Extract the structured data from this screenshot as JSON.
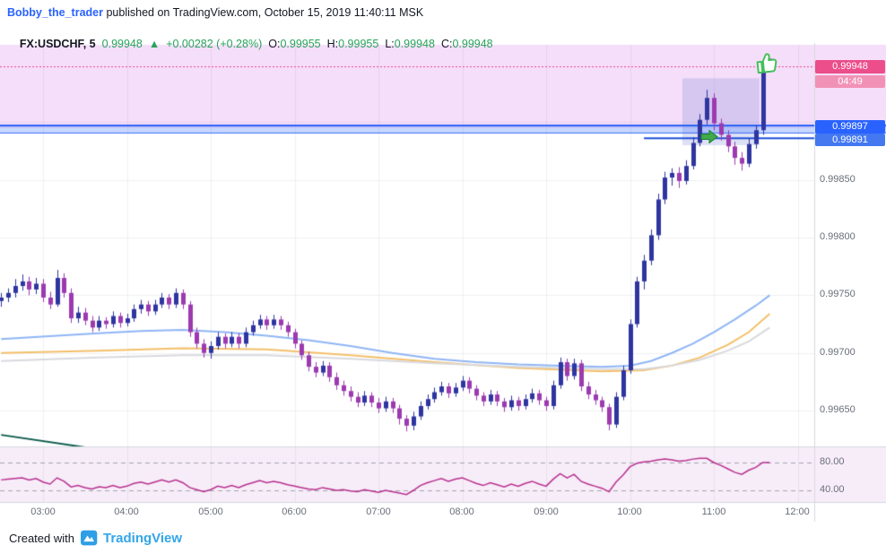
{
  "header": {
    "username": "Bobby_the_trader",
    "publish_text": " published on TradingView.com, October 15, 2019 11:40:11 MSK"
  },
  "legend": {
    "symbol": "FX:USDCHF, 5",
    "last": "0.99948",
    "arrow": "▲",
    "change": "+0.00282 (+0.28%)",
    "o_label": "O:",
    "o_value": "0.99955",
    "h_label": "H:",
    "h_value": "0.99955",
    "l_label": "L:",
    "l_value": "0.99948",
    "c_label": "C:",
    "c_value": "0.99948"
  },
  "price_axis": {
    "labels": [
      "0.99850",
      "0.99800",
      "0.99750",
      "0.99700",
      "0.99650"
    ],
    "last_price": "0.99948",
    "countdown": "04:49",
    "band_upper": "0.99897",
    "band_lower": "0.99891",
    "osc_labels": [
      "80.00",
      "40.00"
    ]
  },
  "time_axis": {
    "labels": [
      "03:00",
      "04:00",
      "05:00",
      "06:00",
      "07:00",
      "08:00",
      "09:00",
      "10:00",
      "11:00",
      "12:00"
    ]
  },
  "footer": {
    "created_with": "Created with",
    "brand": "TradingView"
  },
  "colors": {
    "link_blue": "#2962ff",
    "bullish_text": "#27a35a",
    "header_text": "#131722",
    "axis_text": "#696e79",
    "brand_blue": "#32a6e8",
    "last_price_chip": "#ec4d8b",
    "countdown_chip": "#f291b6",
    "band_chip": "#2962ff"
  },
  "chart_data": {
    "type": "candlestick",
    "title": "FX:USDCHF 5-minute chart",
    "interval_minutes": 5,
    "price_range_top": 0.99967,
    "price_range_bottom": 0.99619,
    "candles": [
      [
        "02:30",
        0.99745,
        0.99752,
        0.9974,
        0.99748
      ],
      [
        "02:35",
        0.99748,
        0.99756,
        0.99744,
        0.99752
      ],
      [
        "02:40",
        0.99752,
        0.99764,
        0.99748,
        0.99758
      ],
      [
        "02:45",
        0.99758,
        0.99768,
        0.99754,
        0.99762
      ],
      [
        "02:50",
        0.99762,
        0.99766,
        0.9975,
        0.99755
      ],
      [
        "02:55",
        0.99755,
        0.99765,
        0.99751,
        0.9976
      ],
      [
        "03:00",
        0.9976,
        0.99764,
        0.99744,
        0.99748
      ],
      [
        "03:05",
        0.99748,
        0.99753,
        0.99738,
        0.99742
      ],
      [
        "03:10",
        0.99742,
        0.99772,
        0.9974,
        0.99765
      ],
      [
        "03:15",
        0.99765,
        0.99769,
        0.99748,
        0.99752
      ],
      [
        "03:20",
        0.99752,
        0.99756,
        0.99726,
        0.9973
      ],
      [
        "03:25",
        0.9973,
        0.9974,
        0.99726,
        0.99735
      ],
      [
        "03:30",
        0.99735,
        0.99739,
        0.99724,
        0.99728
      ],
      [
        "03:35",
        0.99728,
        0.99732,
        0.99718,
        0.99722
      ],
      [
        "03:40",
        0.99722,
        0.99732,
        0.99719,
        0.99728
      ],
      [
        "03:45",
        0.99728,
        0.99731,
        0.99721,
        0.99725
      ],
      [
        "03:50",
        0.99725,
        0.99736,
        0.99722,
        0.99732
      ],
      [
        "03:55",
        0.99732,
        0.99735,
        0.99722,
        0.99726
      ],
      [
        "04:00",
        0.99726,
        0.99734,
        0.99723,
        0.9973
      ],
      [
        "04:05",
        0.9973,
        0.99742,
        0.99727,
        0.99738
      ],
      [
        "04:10",
        0.99738,
        0.99746,
        0.99734,
        0.99742
      ],
      [
        "04:15",
        0.99742,
        0.99745,
        0.99732,
        0.99736
      ],
      [
        "04:20",
        0.99736,
        0.99746,
        0.99733,
        0.99742
      ],
      [
        "04:25",
        0.99742,
        0.99752,
        0.99739,
        0.99748
      ],
      [
        "04:30",
        0.99748,
        0.99751,
        0.99738,
        0.99742
      ],
      [
        "04:35",
        0.99742,
        0.99756,
        0.99739,
        0.99752
      ],
      [
        "04:40",
        0.99752,
        0.99755,
        0.99738,
        0.99742
      ],
      [
        "04:45",
        0.99742,
        0.99745,
        0.99714,
        0.99718
      ],
      [
        "04:50",
        0.99718,
        0.99722,
        0.99704,
        0.99708
      ],
      [
        "04:55",
        0.99708,
        0.99712,
        0.99696,
        0.997
      ],
      [
        "05:00",
        0.997,
        0.9971,
        0.99695,
        0.99706
      ],
      [
        "05:05",
        0.99706,
        0.99718,
        0.99703,
        0.99714
      ],
      [
        "05:10",
        0.99714,
        0.99717,
        0.99704,
        0.99708
      ],
      [
        "05:15",
        0.99708,
        0.99718,
        0.99705,
        0.99714
      ],
      [
        "05:20",
        0.99714,
        0.99717,
        0.99704,
        0.99708
      ],
      [
        "05:25",
        0.99708,
        0.99722,
        0.99705,
        0.99718
      ],
      [
        "05:30",
        0.99718,
        0.99728,
        0.99715,
        0.99724
      ],
      [
        "05:35",
        0.99724,
        0.99733,
        0.99721,
        0.99729
      ],
      [
        "05:40",
        0.99729,
        0.99732,
        0.9972,
        0.99724
      ],
      [
        "05:45",
        0.99724,
        0.99733,
        0.99721,
        0.99729
      ],
      [
        "05:50",
        0.99729,
        0.99732,
        0.9972,
        0.99724
      ],
      [
        "05:55",
        0.99724,
        0.99727,
        0.99714,
        0.99718
      ],
      [
        "06:00",
        0.99718,
        0.99721,
        0.99704,
        0.99708
      ],
      [
        "06:05",
        0.99708,
        0.99711,
        0.99694,
        0.99698
      ],
      [
        "06:10",
        0.99698,
        0.99701,
        0.99684,
        0.99688
      ],
      [
        "06:15",
        0.99688,
        0.99692,
        0.99679,
        0.99683
      ],
      [
        "06:20",
        0.99683,
        0.99693,
        0.9968,
        0.99689
      ],
      [
        "06:25",
        0.99689,
        0.99692,
        0.99675,
        0.99679
      ],
      [
        "06:30",
        0.99679,
        0.99683,
        0.99668,
        0.99672
      ],
      [
        "06:35",
        0.99672,
        0.99676,
        0.99663,
        0.99667
      ],
      [
        "06:40",
        0.99667,
        0.99671,
        0.99658,
        0.99662
      ],
      [
        "06:45",
        0.99662,
        0.99666,
        0.99653,
        0.99657
      ],
      [
        "06:50",
        0.99657,
        0.99667,
        0.99654,
        0.99663
      ],
      [
        "06:55",
        0.99663,
        0.99666,
        0.99653,
        0.99657
      ],
      [
        "07:00",
        0.99657,
        0.99661,
        0.99648,
        0.99652
      ],
      [
        "07:05",
        0.99652,
        0.99662,
        0.99649,
        0.99658
      ],
      [
        "07:10",
        0.99658,
        0.99661,
        0.99648,
        0.99652
      ],
      [
        "07:15",
        0.99652,
        0.99655,
        0.99638,
        0.99643
      ],
      [
        "07:20",
        0.99643,
        0.99646,
        0.99632,
        0.99637
      ],
      [
        "07:25",
        0.99637,
        0.99649,
        0.99633,
        0.99645
      ],
      [
        "07:30",
        0.99645,
        0.99658,
        0.99642,
        0.99654
      ],
      [
        "07:35",
        0.99654,
        0.99664,
        0.99651,
        0.9966
      ],
      [
        "07:40",
        0.9966,
        0.9967,
        0.99657,
        0.99666
      ],
      [
        "07:45",
        0.99666,
        0.99675,
        0.99663,
        0.99671
      ],
      [
        "07:50",
        0.99671,
        0.99674,
        0.99661,
        0.99665
      ],
      [
        "07:55",
        0.99665,
        0.99674,
        0.99662,
        0.9967
      ],
      [
        "08:00",
        0.9967,
        0.9968,
        0.99667,
        0.99676
      ],
      [
        "08:05",
        0.99676,
        0.99679,
        0.99665,
        0.99669
      ],
      [
        "08:10",
        0.99669,
        0.99672,
        0.99659,
        0.99663
      ],
      [
        "08:15",
        0.99663,
        0.99666,
        0.99654,
        0.99658
      ],
      [
        "08:20",
        0.99658,
        0.99668,
        0.99655,
        0.99664
      ],
      [
        "08:25",
        0.99664,
        0.99667,
        0.99654,
        0.99658
      ],
      [
        "08:30",
        0.99658,
        0.99661,
        0.99649,
        0.99653
      ],
      [
        "08:35",
        0.99653,
        0.99663,
        0.9965,
        0.99659
      ],
      [
        "08:40",
        0.99659,
        0.99662,
        0.9965,
        0.99654
      ],
      [
        "08:45",
        0.99654,
        0.99664,
        0.99651,
        0.9966
      ],
      [
        "08:50",
        0.9966,
        0.99669,
        0.99657,
        0.99665
      ],
      [
        "08:55",
        0.99665,
        0.99668,
        0.99655,
        0.99659
      ],
      [
        "09:00",
        0.99659,
        0.99662,
        0.9965,
        0.99654
      ],
      [
        "09:05",
        0.99654,
        0.99676,
        0.99651,
        0.99672
      ],
      [
        "09:10",
        0.99672,
        0.99696,
        0.99669,
        0.99692
      ],
      [
        "09:15",
        0.99692,
        0.99695,
        0.99676,
        0.9968
      ],
      [
        "09:20",
        0.9968,
        0.99695,
        0.99677,
        0.99691
      ],
      [
        "09:25",
        0.99691,
        0.99694,
        0.99667,
        0.99671
      ],
      [
        "09:30",
        0.99671,
        0.99675,
        0.9966,
        0.99664
      ],
      [
        "09:35",
        0.99664,
        0.99668,
        0.99655,
        0.99659
      ],
      [
        "09:40",
        0.99659,
        0.99662,
        0.99649,
        0.99653
      ],
      [
        "09:45",
        0.99653,
        0.99656,
        0.99633,
        0.99638
      ],
      [
        "09:50",
        0.99638,
        0.99666,
        0.99635,
        0.99662
      ],
      [
        "09:55",
        0.99662,
        0.99689,
        0.99659,
        0.99685
      ],
      [
        "10:00",
        0.99685,
        0.99729,
        0.99682,
        0.99725
      ],
      [
        "10:05",
        0.99725,
        0.99766,
        0.99722,
        0.99762
      ],
      [
        "10:10",
        0.99762,
        0.99785,
        0.99755,
        0.9978
      ],
      [
        "10:15",
        0.9978,
        0.99807,
        0.99776,
        0.99802
      ],
      [
        "10:20",
        0.99802,
        0.99838,
        0.99798,
        0.99833
      ],
      [
        "10:25",
        0.99833,
        0.99857,
        0.99829,
        0.99852
      ],
      [
        "10:30",
        0.99852,
        0.9986,
        0.99845,
        0.99856
      ],
      [
        "10:35",
        0.99856,
        0.99861,
        0.99843,
        0.99849
      ],
      [
        "10:40",
        0.99849,
        0.99867,
        0.99846,
        0.99862
      ],
      [
        "10:45",
        0.99862,
        0.99887,
        0.99859,
        0.99882
      ],
      [
        "10:50",
        0.99882,
        0.99907,
        0.99879,
        0.99902
      ],
      [
        "10:55",
        0.99902,
        0.99928,
        0.99898,
        0.99921
      ],
      [
        "11:00",
        0.99921,
        0.99925,
        0.99893,
        0.99899
      ],
      [
        "11:05",
        0.99899,
        0.99903,
        0.99884,
        0.99889
      ],
      [
        "11:10",
        0.99889,
        0.99893,
        0.99874,
        0.99879
      ],
      [
        "11:15",
        0.99879,
        0.99883,
        0.99863,
        0.99869
      ],
      [
        "11:20",
        0.99869,
        0.99874,
        0.99858,
        0.99864
      ],
      [
        "11:25",
        0.99864,
        0.99886,
        0.99861,
        0.99881
      ],
      [
        "11:30",
        0.99881,
        0.99897,
        0.99877,
        0.99893
      ],
      [
        "11:35",
        0.99893,
        0.99952,
        0.99889,
        0.99948
      ],
      [
        "11:40",
        0.99955,
        0.99955,
        0.99948,
        0.99948
      ]
    ],
    "moving_averages": [
      {
        "name": "ma-fast-blue",
        "color": "#8fb5f5",
        "points": [
          [
            "02:30",
            0.99712
          ],
          [
            "03:10",
            0.99715
          ],
          [
            "03:40",
            0.99717
          ],
          [
            "04:10",
            0.99719
          ],
          [
            "04:40",
            0.9972
          ],
          [
            "05:10",
            0.99718
          ],
          [
            "05:40",
            0.99715
          ],
          [
            "06:10",
            0.99711
          ],
          [
            "06:40",
            0.99706
          ],
          [
            "07:10",
            0.997
          ],
          [
            "07:40",
            0.99695
          ],
          [
            "08:10",
            0.99692
          ],
          [
            "08:40",
            0.9969
          ],
          [
            "09:10",
            0.99689
          ],
          [
            "09:40",
            0.99688
          ],
          [
            "10:00",
            0.99689
          ],
          [
            "10:15",
            0.99693
          ],
          [
            "10:30",
            0.997
          ],
          [
            "10:45",
            0.99708
          ],
          [
            "11:00",
            0.99718
          ],
          [
            "11:15",
            0.99729
          ],
          [
            "11:30",
            0.99741
          ],
          [
            "11:40",
            0.9975
          ]
        ]
      },
      {
        "name": "ma-mid-yellow",
        "color": "#f3bf69",
        "points": [
          [
            "02:30",
            0.997
          ],
          [
            "03:40",
            0.99702
          ],
          [
            "04:40",
            0.99704
          ],
          [
            "05:40",
            0.99703
          ],
          [
            "06:40",
            0.99698
          ],
          [
            "07:40",
            0.99692
          ],
          [
            "08:40",
            0.99687
          ],
          [
            "09:40",
            0.99684
          ],
          [
            "10:10",
            0.99685
          ],
          [
            "10:30",
            0.99689
          ],
          [
            "10:50",
            0.99696
          ],
          [
            "11:10",
            0.99707
          ],
          [
            "11:25",
            0.99718
          ],
          [
            "11:40",
            0.99734
          ]
        ]
      },
      {
        "name": "ma-slow-gray",
        "color": "#d8d9de",
        "points": [
          [
            "02:30",
            0.99693
          ],
          [
            "03:40",
            0.99696
          ],
          [
            "04:40",
            0.99698
          ],
          [
            "05:40",
            0.99698
          ],
          [
            "06:40",
            0.99695
          ],
          [
            "07:40",
            0.99691
          ],
          [
            "08:40",
            0.99688
          ],
          [
            "09:40",
            0.99686
          ],
          [
            "10:10",
            0.99686
          ],
          [
            "10:30",
            0.99689
          ],
          [
            "10:50",
            0.99694
          ],
          [
            "11:10",
            0.99702
          ],
          [
            "11:25",
            0.9971
          ],
          [
            "11:40",
            0.99722
          ]
        ]
      }
    ],
    "levels": {
      "current_price_line": {
        "price": 0.99948,
        "color": "#e8468f"
      },
      "resistance_band": {
        "top": 0.99897,
        "bottom": 0.99891,
        "fill": "rgba(56,114,250,0.28)",
        "line_color": "#2b63f5"
      },
      "ray": {
        "start": "10:10",
        "price": 0.99886,
        "color": "#1d4fd7"
      },
      "trendline": {
        "t1": "02:30",
        "p1": 0.99629,
        "t2": "04:05",
        "p2": 0.99612,
        "color": "#0d5c4d"
      }
    },
    "zones": {
      "supply_zone": {
        "bottom": 0.99895,
        "fill": "rgba(225,160,238,0.35)"
      },
      "consolidation_box": {
        "t1": "10:40",
        "t2": "11:30",
        "top": 0.99938,
        "bottom": 0.9988,
        "fill": "rgba(105,120,210,0.22)"
      }
    },
    "oscillator": {
      "color": "#b8308f",
      "background": "#f7edf8",
      "guides": [
        80,
        40
      ],
      "guide_color": "#a3a6b0",
      "values": [
        55,
        56,
        57,
        58,
        55,
        57,
        52,
        49,
        58,
        53,
        45,
        47,
        44,
        42,
        45,
        44,
        47,
        44,
        46,
        50,
        52,
        49,
        52,
        55,
        52,
        55,
        51,
        44,
        41,
        38,
        41,
        46,
        44,
        47,
        44,
        48,
        51,
        54,
        51,
        53,
        51,
        48,
        46,
        44,
        42,
        41,
        44,
        42,
        40,
        41,
        39,
        38,
        41,
        39,
        37,
        40,
        38,
        36,
        34,
        40,
        47,
        51,
        54,
        57,
        53,
        56,
        58,
        54,
        50,
        47,
        51,
        48,
        45,
        49,
        46,
        50,
        53,
        49,
        46,
        56,
        64,
        58,
        63,
        53,
        49,
        46,
        43,
        38,
        52,
        62,
        74,
        79,
        81,
        82,
        84,
        85,
        84,
        82,
        83,
        85,
        86,
        86,
        80,
        76,
        71,
        66,
        63,
        69,
        73,
        80,
        80
      ]
    },
    "style": {
      "up_color": "#2e35a0",
      "down_color": "#9c3ab0"
    },
    "markers": [
      {
        "type": "thumbs-up",
        "time": "11:35",
        "price": 0.9996,
        "color": "#43c059"
      },
      {
        "type": "arrow-right",
        "time": "11:00",
        "price": 0.99892,
        "color": "#3fa94c"
      }
    ]
  }
}
